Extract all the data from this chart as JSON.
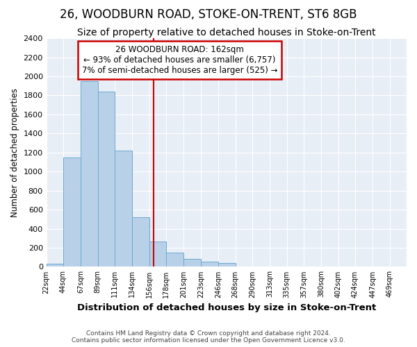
{
  "title": "26, WOODBURN ROAD, STOKE-ON-TRENT, ST6 8GB",
  "subtitle": "Size of property relative to detached houses in Stoke-on-Trent",
  "xlabel": "Distribution of detached houses by size in Stoke-on-Trent",
  "ylabel": "Number of detached properties",
  "footer_line1": "Contains HM Land Registry data © Crown copyright and database right 2024.",
  "footer_line2": "Contains public sector information licensed under the Open Government Licence v3.0.",
  "annotation_line1": "26 WOODBURN ROAD: 162sqm",
  "annotation_line2": "← 93% of detached houses are smaller (6,757)",
  "annotation_line3": "7% of semi-detached houses are larger (525) →",
  "bar_color": "#b8d0e8",
  "bar_edge_color": "#6aaad4",
  "redline_x": 162,
  "categories": [
    "22sqm",
    "44sqm",
    "67sqm",
    "89sqm",
    "111sqm",
    "134sqm",
    "156sqm",
    "178sqm",
    "201sqm",
    "223sqm",
    "246sqm",
    "268sqm",
    "290sqm",
    "313sqm",
    "335sqm",
    "357sqm",
    "380sqm",
    "402sqm",
    "424sqm",
    "447sqm",
    "469sqm"
  ],
  "bin_edges": [
    22,
    44,
    67,
    89,
    111,
    134,
    156,
    178,
    201,
    223,
    246,
    268,
    290,
    313,
    335,
    357,
    380,
    402,
    424,
    447,
    469,
    491
  ],
  "values": [
    30,
    1150,
    1950,
    1840,
    1220,
    520,
    265,
    150,
    80,
    55,
    40,
    0,
    0,
    0,
    0,
    0,
    0,
    0,
    0,
    0,
    5
  ],
  "ylim": [
    0,
    2400
  ],
  "yticks": [
    0,
    200,
    400,
    600,
    800,
    1000,
    1200,
    1400,
    1600,
    1800,
    2000,
    2200,
    2400
  ],
  "fig_bg_color": "#ffffff",
  "plot_bg_color": "#e8eef5",
  "grid_color": "#ffffff",
  "title_fontsize": 12,
  "subtitle_fontsize": 10,
  "annotation_box_color": "#cc0000"
}
